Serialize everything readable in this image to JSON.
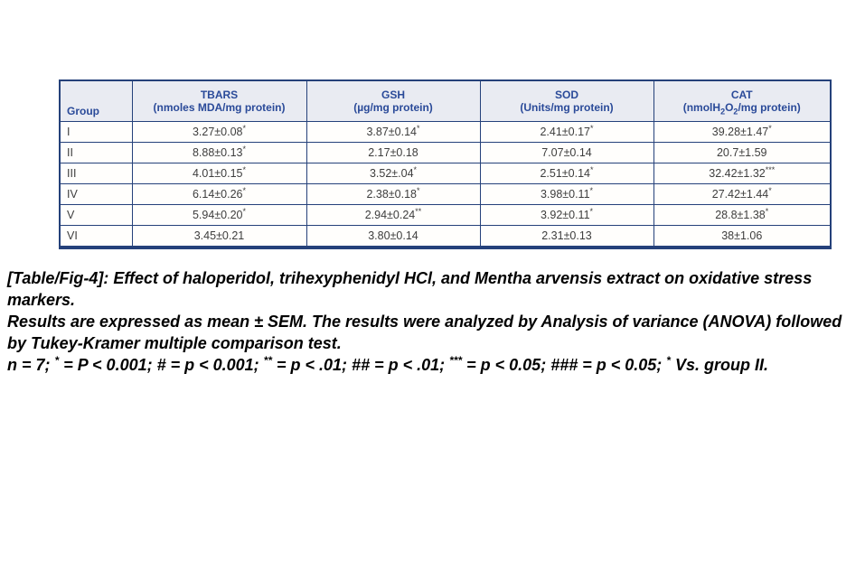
{
  "colors": {
    "table_border": "#25417a",
    "header_bg": "#e9ebf2",
    "header_text": "#2a4a99",
    "cell_text": "#3d3d3d",
    "caption_text": "#000000",
    "page_bg": "#ffffff"
  },
  "table": {
    "columns": [
      {
        "id": "group",
        "title": "Group",
        "unit": []
      },
      {
        "id": "tbars",
        "title": "TBARS",
        "unit": [
          {
            "t": "(nmoles MDA/mg protein)"
          }
        ]
      },
      {
        "id": "gsh",
        "title": "GSH",
        "unit": [
          {
            "t": "(µg/mg protein)"
          }
        ]
      },
      {
        "id": "sod",
        "title": "SOD",
        "unit": [
          {
            "t": "(Units/mg protein)"
          }
        ]
      },
      {
        "id": "cat",
        "title": "CAT",
        "unit": [
          {
            "t": "(nmolH"
          },
          {
            "t": "2",
            "sub": true
          },
          {
            "t": "O"
          },
          {
            "t": "2",
            "sub": true
          },
          {
            "t": "/mg protein)"
          }
        ]
      }
    ],
    "rows": [
      {
        "group": "I",
        "cells": [
          {
            "v": "3.27±0.08",
            "sup": "*"
          },
          {
            "v": "3.87±0.14",
            "sup": "*"
          },
          {
            "v": "2.41±0.17",
            "sup": "*"
          },
          {
            "v": "39.28±1.47",
            "sup": "*"
          }
        ]
      },
      {
        "group": "II",
        "cells": [
          {
            "v": "8.88±0.13",
            "sup": "*"
          },
          {
            "v": "2.17±0.18",
            "sup": ""
          },
          {
            "v": "7.07±0.14",
            "sup": ""
          },
          {
            "v": "20.7±1.59",
            "sup": ""
          }
        ]
      },
      {
        "group": "III",
        "cells": [
          {
            "v": "4.01±0.15",
            "sup": "*"
          },
          {
            "v": "3.52±.04",
            "sup": "*"
          },
          {
            "v": "2.51±0.14",
            "sup": "*"
          },
          {
            "v": "32.42±1.32",
            "sup": "***"
          }
        ]
      },
      {
        "group": "IV",
        "cells": [
          {
            "v": "6.14±0.26",
            "sup": "*"
          },
          {
            "v": "2.38±0.18",
            "sup": "*"
          },
          {
            "v": "3.98±0.11",
            "sup": "*"
          },
          {
            "v": "27.42±1.44",
            "sup": "*"
          }
        ]
      },
      {
        "group": "V",
        "cells": [
          {
            "v": "5.94±0.20",
            "sup": "*"
          },
          {
            "v": "2.94±0.24",
            "sup": "**"
          },
          {
            "v": "3.92±0.11",
            "sup": "*"
          },
          {
            "v": "28.8±1.38",
            "sup": "*"
          }
        ]
      },
      {
        "group": "VI",
        "cells": [
          {
            "v": "3.45±0.21",
            "sup": ""
          },
          {
            "v": "3.80±0.14",
            "sup": ""
          },
          {
            "v": "2.31±0.13",
            "sup": ""
          },
          {
            "v": "38±1.06",
            "sup": ""
          }
        ]
      }
    ]
  },
  "caption": {
    "title": "[Table/Fig-4]: Effect of haloperidol, trihexyphenidyl HCl, and Mentha arvensis extract on oxidative stress markers.",
    "methods": "Results are expressed as mean ± SEM. The results were analyzed by Analysis of variance (ANOVA) followed by Tukey-Kramer multiple comparison test.",
    "significance_segments": [
      {
        "t": "n = 7; "
      },
      {
        "t": "*",
        "sup": true
      },
      {
        "t": " = P < 0.001; # = p < 0.001; "
      },
      {
        "t": "**",
        "sup": true
      },
      {
        "t": " = p < .01; ## = p < .01; "
      },
      {
        "t": "***",
        "sup": true
      },
      {
        "t": " = p < 0.05; ### = p < 0.05; "
      },
      {
        "t": "*",
        "sup": true
      },
      {
        "t": " Vs. group II."
      }
    ]
  }
}
